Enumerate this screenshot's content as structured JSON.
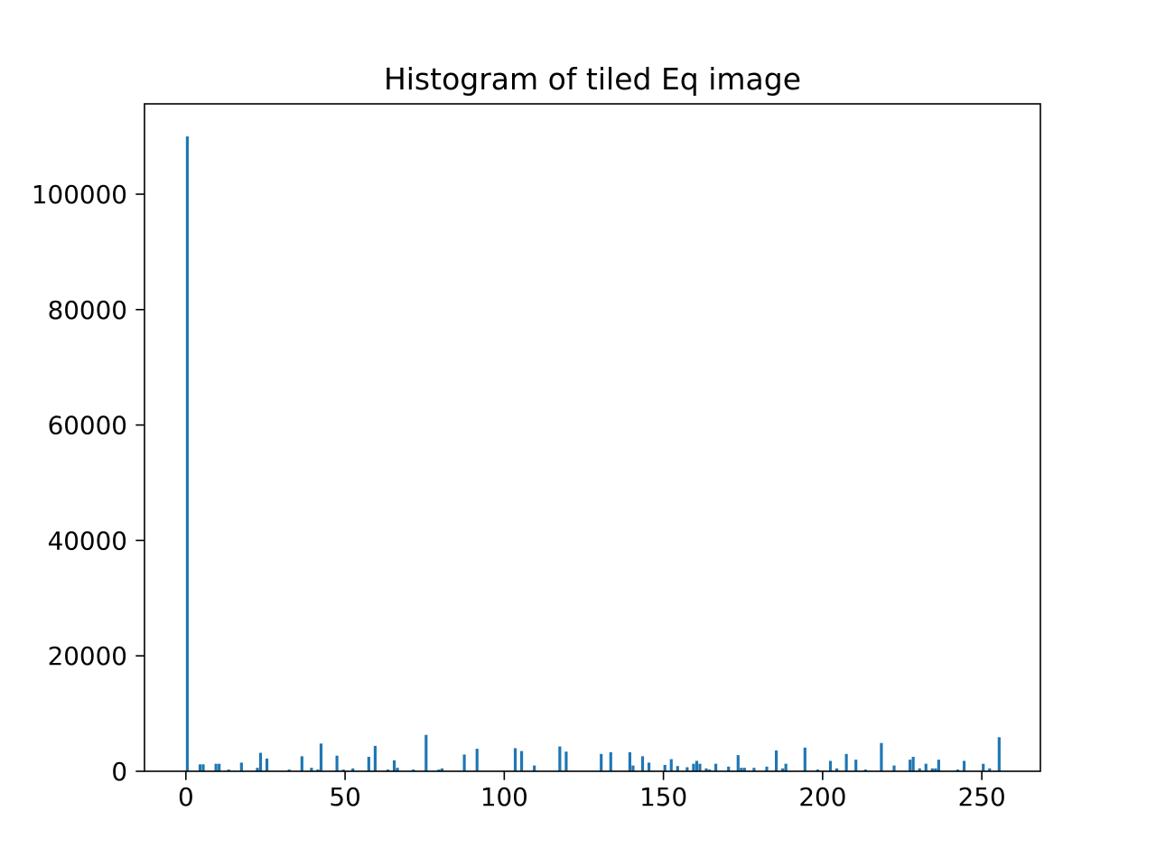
{
  "chart_data": {
    "type": "histogram",
    "title": "Histogram of tiled Eq image",
    "color": "#1f77b4",
    "bins": [
      0,
      1,
      2,
      3,
      4,
      5,
      6,
      7,
      8,
      9,
      10,
      11,
      12,
      13,
      14,
      15,
      16,
      17,
      18,
      19,
      20,
      21,
      22,
      23,
      24,
      25,
      26,
      27,
      28,
      29,
      30,
      31,
      32,
      33,
      34,
      35,
      36,
      37,
      38,
      39,
      40,
      41,
      42,
      43,
      44,
      45,
      46,
      47,
      48,
      49,
      50,
      51,
      52,
      53,
      54,
      55,
      56,
      57,
      58,
      59,
      60,
      61,
      62,
      63,
      64,
      65,
      66,
      67,
      68,
      69,
      70,
      71,
      72,
      73,
      74,
      75,
      76,
      77,
      78,
      79,
      80,
      81,
      82,
      83,
      84,
      85,
      86,
      87,
      88,
      89,
      90,
      91,
      92,
      93,
      94,
      95,
      96,
      97,
      98,
      99,
      100,
      101,
      102,
      103,
      104,
      105,
      106,
      107,
      108,
      109,
      110,
      111,
      112,
      113,
      114,
      115,
      116,
      117,
      118,
      119,
      120,
      121,
      122,
      123,
      124,
      125,
      126,
      127,
      128,
      129,
      130,
      131,
      132,
      133,
      134,
      135,
      136,
      137,
      138,
      139,
      140,
      141,
      142,
      143,
      144,
      145,
      146,
      147,
      148,
      149,
      150,
      151,
      152,
      153,
      154,
      155,
      156,
      157,
      158,
      159,
      160,
      161,
      162,
      163,
      164,
      165,
      166,
      167,
      168,
      169,
      170,
      171,
      172,
      173,
      174,
      175,
      176,
      177,
      178,
      179,
      180,
      181,
      182,
      183,
      184,
      185,
      186,
      187,
      188,
      189,
      190,
      191,
      192,
      193,
      194,
      195,
      196,
      197,
      198,
      199,
      200,
      201,
      202,
      203,
      204,
      205,
      206,
      207,
      208,
      209,
      210,
      211,
      212,
      213,
      214,
      215,
      216,
      217,
      218,
      219,
      220,
      221,
      222,
      223,
      224,
      225,
      226,
      227,
      228,
      229,
      230,
      231,
      232,
      233,
      234,
      235,
      236,
      237,
      238,
      239,
      240,
      241,
      242,
      243,
      244,
      245,
      246,
      247,
      248,
      249,
      250,
      251,
      252,
      253,
      254,
      255,
      256
    ],
    "values": [
      110000,
      0,
      0,
      0,
      1200,
      1200,
      0,
      0,
      0,
      1300,
      1300,
      0,
      0,
      300,
      0,
      0,
      0,
      1500,
      0,
      0,
      0,
      0,
      600,
      3200,
      0,
      2200,
      0,
      0,
      0,
      0,
      0,
      0,
      300,
      0,
      0,
      0,
      2600,
      0,
      0,
      600,
      0,
      300,
      4800,
      0,
      0,
      0,
      0,
      2700,
      0,
      300,
      0,
      0,
      500,
      0,
      0,
      0,
      0,
      2500,
      0,
      4400,
      0,
      0,
      0,
      300,
      0,
      1900,
      600,
      0,
      0,
      0,
      0,
      300,
      0,
      0,
      0,
      6300,
      0,
      0,
      0,
      300,
      500,
      0,
      0,
      0,
      0,
      0,
      0,
      2900,
      0,
      0,
      0,
      3900,
      0,
      0,
      0,
      0,
      0,
      0,
      0,
      0,
      0,
      0,
      0,
      4000,
      0,
      3500,
      0,
      0,
      0,
      1000,
      0,
      0,
      0,
      0,
      0,
      0,
      0,
      4300,
      0,
      3400,
      0,
      0,
      0,
      0,
      0,
      0,
      0,
      0,
      0,
      0,
      3000,
      0,
      0,
      3300,
      0,
      0,
      0,
      0,
      0,
      3300,
      1000,
      0,
      0,
      2600,
      0,
      1500,
      0,
      0,
      0,
      0,
      1100,
      0,
      2100,
      0,
      900,
      0,
      0,
      700,
      0,
      1300,
      1800,
      1300,
      0,
      500,
      300,
      0,
      1300,
      0,
      0,
      0,
      800,
      0,
      0,
      2800,
      600,
      600,
      0,
      0,
      600,
      0,
      0,
      0,
      800,
      0,
      0,
      3600,
      0,
      500,
      1300,
      0,
      0,
      0,
      0,
      0,
      4100,
      0,
      0,
      0,
      300,
      0,
      0,
      0,
      1800,
      0,
      500,
      0,
      0,
      3000,
      0,
      0,
      2000,
      0,
      0,
      300,
      0,
      0,
      0,
      0,
      4900,
      0,
      0,
      0,
      1000,
      0,
      0,
      0,
      0,
      2000,
      2500,
      0,
      500,
      0,
      1300,
      0,
      500,
      500,
      2000,
      0,
      0,
      0,
      0,
      0,
      300,
      0,
      1800,
      0,
      0,
      0,
      0,
      0,
      1300,
      0,
      500,
      0,
      0,
      5900
    ],
    "xlim": [
      -13,
      268.4
    ],
    "xticks": [
      0,
      50,
      100,
      150,
      200,
      250
    ],
    "ylim": [
      0,
      115650
    ],
    "yticks": [
      0,
      20000,
      40000,
      60000,
      80000,
      100000
    ]
  }
}
